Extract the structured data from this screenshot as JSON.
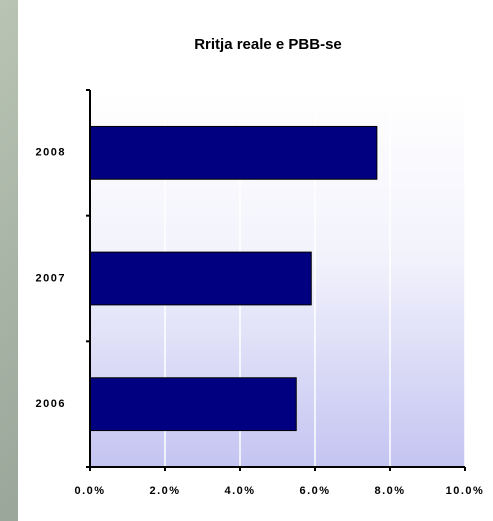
{
  "chart_data": {
    "type": "bar",
    "orientation": "horizontal",
    "title": "Rritja reale e PBB-se",
    "categories": [
      "2008",
      "2007",
      "2006"
    ],
    "values": [
      7.65,
      5.9,
      5.5
    ],
    "color": "#000080",
    "xlim": [
      0,
      10
    ],
    "xticks": [
      {
        "value": 0,
        "label": "0.0%"
      },
      {
        "value": 2,
        "label": "2.0%"
      },
      {
        "value": 4,
        "label": "4.0%"
      },
      {
        "value": 6,
        "label": "6.0%"
      },
      {
        "value": 8,
        "label": "8.0%"
      },
      {
        "value": 10,
        "label": "10.0%"
      }
    ],
    "grid": true
  }
}
